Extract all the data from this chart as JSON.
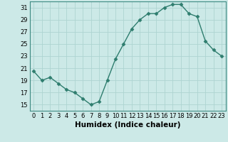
{
  "x": [
    0,
    1,
    2,
    3,
    4,
    5,
    6,
    7,
    8,
    9,
    10,
    11,
    12,
    13,
    14,
    15,
    16,
    17,
    18,
    19,
    20,
    21,
    22,
    23
  ],
  "y": [
    20.5,
    19.0,
    19.5,
    18.5,
    17.5,
    17.0,
    16.0,
    15.0,
    15.5,
    19.0,
    22.5,
    25.0,
    27.5,
    29.0,
    30.0,
    30.0,
    31.0,
    31.5,
    31.5,
    30.0,
    29.5,
    25.5,
    24.0,
    23.0
  ],
  "line_color": "#2e7d6e",
  "marker": "D",
  "marker_size": 2.5,
  "bg_color": "#cce9e7",
  "grid_color": "#aed4d1",
  "xlabel": "Humidex (Indice chaleur)",
  "xlim": [
    -0.5,
    23.5
  ],
  "ylim": [
    14,
    32
  ],
  "yticks": [
    15,
    17,
    19,
    21,
    23,
    25,
    27,
    29,
    31
  ],
  "xticks": [
    0,
    1,
    2,
    3,
    4,
    5,
    6,
    7,
    8,
    9,
    10,
    11,
    12,
    13,
    14,
    15,
    16,
    17,
    18,
    19,
    20,
    21,
    22,
    23
  ],
  "tick_label_fontsize": 6,
  "xlabel_fontsize": 7.5
}
